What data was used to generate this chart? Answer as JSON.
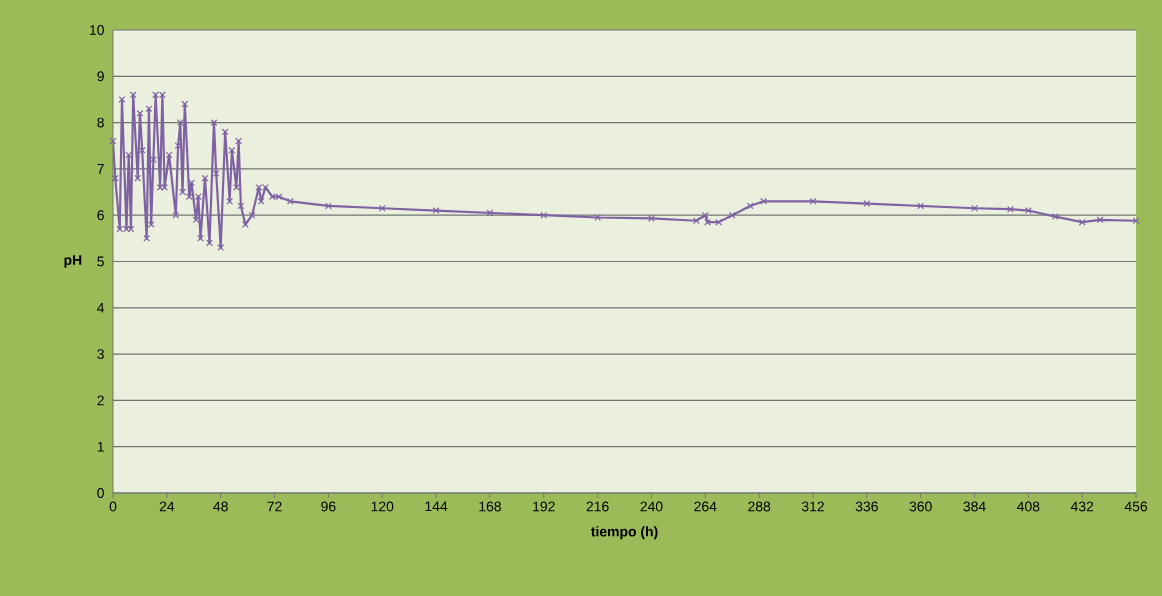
{
  "chart_data": {
    "type": "line",
    "xlabel": "tiempo (h)",
    "ylabel": "pH",
    "x": [
      0,
      1,
      3,
      4,
      6,
      7,
      8,
      9,
      11,
      12,
      13,
      15,
      16,
      17,
      18,
      19,
      21,
      22,
      23,
      25,
      28,
      29,
      30,
      31,
      32,
      34,
      35,
      37,
      38,
      39,
      41,
      43,
      45,
      46,
      48,
      50,
      52,
      53,
      55,
      56,
      57,
      59,
      62,
      65,
      66,
      68,
      71,
      74,
      79,
      96,
      120,
      144,
      168,
      192,
      216,
      240,
      260,
      264,
      265,
      270,
      276,
      284,
      290,
      312,
      336,
      360,
      384,
      400,
      408,
      420,
      432,
      440,
      456
    ],
    "series": [
      {
        "color": "#7f62a3",
        "values": [
          7.6,
          6.8,
          5.7,
          8.5,
          5.7,
          7.3,
          5.7,
          8.6,
          6.8,
          8.2,
          7.4,
          5.5,
          8.3,
          5.8,
          7.2,
          8.6,
          6.6,
          8.6,
          6.6,
          7.3,
          6.0,
          7.5,
          8.0,
          6.5,
          8.4,
          6.4,
          6.7,
          5.9,
          6.4,
          5.5,
          6.8,
          5.4,
          8.0,
          6.9,
          5.3,
          7.8,
          6.3,
          7.4,
          6.6,
          7.6,
          6.2,
          5.8,
          6.0,
          6.6,
          6.3,
          6.6,
          6.4,
          6.4,
          6.3,
          6.2,
          6.15,
          6.1,
          6.05,
          6.0,
          5.95,
          5.93,
          5.88,
          6.0,
          5.85,
          5.85,
          6.0,
          6.2,
          6.3,
          6.3,
          6.25,
          6.2,
          6.15,
          6.13,
          6.1,
          5.97,
          5.85,
          5.9,
          5.88
        ]
      }
    ],
    "xlim": [
      0,
      456
    ],
    "xticks": [
      0,
      24,
      48,
      72,
      96,
      120,
      144,
      168,
      192,
      216,
      240,
      264,
      288,
      312,
      336,
      360,
      384,
      408,
      432,
      456
    ],
    "ylim": [
      0,
      10
    ],
    "yticks": [
      0,
      1,
      2,
      3,
      4,
      5,
      6,
      7,
      8,
      9,
      10
    ],
    "grid": "y",
    "marker": "cross",
    "line_style": "solid"
  }
}
